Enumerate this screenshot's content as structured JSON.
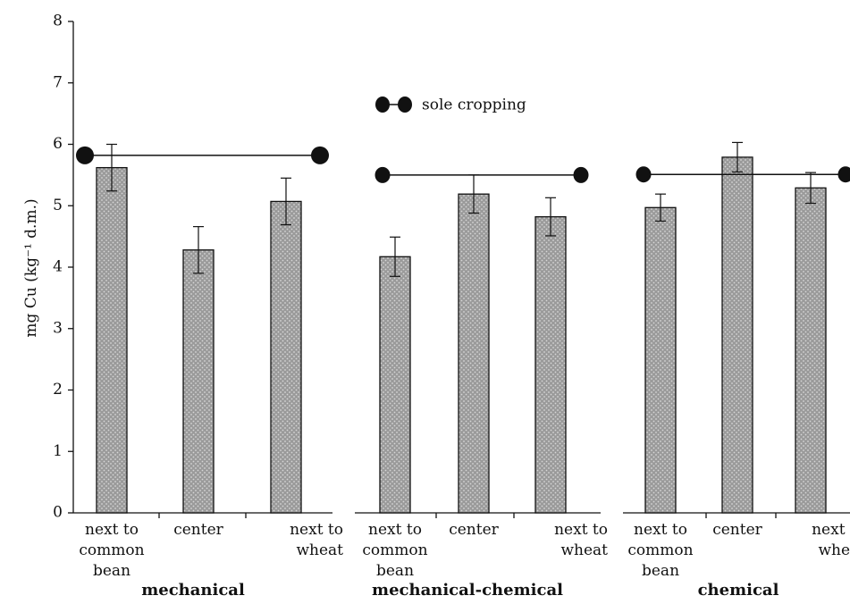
{
  "chart_data": {
    "type": "bar",
    "ylabel": "mg Cu (kg⁻¹ d.m.)",
    "ylim": [
      0,
      8
    ],
    "yticks": [
      0,
      1,
      2,
      3,
      4,
      5,
      6,
      7,
      8
    ],
    "legend": {
      "label": "sole cropping",
      "placement": "top-center"
    },
    "bar_color": "#9a9a9a",
    "reference_color": "#111111",
    "groups": [
      {
        "label": "mechanical",
        "categories": [
          [
            "next to",
            "common",
            "bean"
          ],
          [
            "center"
          ],
          [
            "next to",
            "wheat"
          ]
        ],
        "values": [
          5.62,
          4.28,
          5.07
        ],
        "errors": [
          0.38,
          0.38,
          0.38
        ],
        "sole_cropping": 5.82
      },
      {
        "label": "mechanical-chemical",
        "categories": [
          [
            "next to",
            "common",
            "bean"
          ],
          [
            "center"
          ],
          [
            "next to",
            "wheat"
          ]
        ],
        "values": [
          4.17,
          5.19,
          4.82
        ],
        "errors": [
          0.32,
          0.31,
          0.31
        ],
        "sole_cropping": 5.5
      },
      {
        "label": "chemical",
        "categories": [
          [
            "next to",
            "common",
            "bean"
          ],
          [
            "center"
          ],
          [
            "next to",
            "wheat"
          ]
        ],
        "values": [
          4.97,
          5.79,
          5.29
        ],
        "errors": [
          0.22,
          0.24,
          0.25
        ],
        "sole_cropping": 5.51
      }
    ]
  }
}
